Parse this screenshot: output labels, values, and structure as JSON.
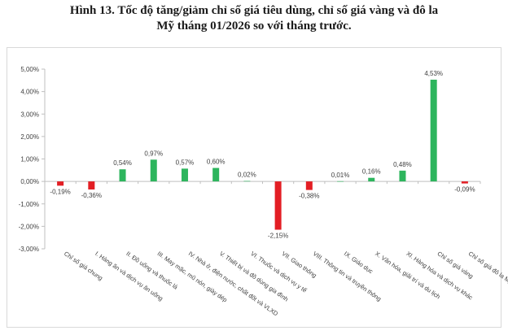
{
  "title": {
    "line1": "Hình 13. Tốc độ tăng/giảm chỉ số giá tiêu dùng, chỉ số giá vàng và đô la",
    "line2": "Mỹ tháng 01/2026 so với tháng trước."
  },
  "colors": {
    "positive": "#2db55d",
    "negative": "#e31e24",
    "axis": "#bfbfbf",
    "text": "#404040"
  },
  "chart_data": {
    "type": "bar",
    "title": "",
    "xlabel": "",
    "ylabel": "",
    "ylim": [
      -3,
      5
    ],
    "yticks": [
      -3,
      -2,
      -1,
      0,
      1,
      2,
      3,
      4,
      5
    ],
    "ytick_labels": [
      "-3,00%",
      "-2,00%",
      "-1,00%",
      "0,00%",
      "1,00%",
      "2,00%",
      "3,00%",
      "4,00%",
      "5,00%"
    ],
    "grid": false,
    "legend": "none",
    "categories": [
      "Chỉ số giá chung",
      "I. Hàng ăn và dịch vụ ăn uống",
      "II. Đồ uống và thuốc lá",
      "III. May mặc, mũ nón, giày dép",
      "IV. Nhà ở, điện nước, chất đốt và VLXD",
      "V. Thiết bị và đồ dùng gia đình",
      "VI. Thuốc và dịch vụ y tế",
      "VII. Giao thông",
      "VIII. Thông tin và truyền thông",
      "IX. Giáo dục",
      "X. Văn hóa, giải trí và du lịch",
      "XI. Hàng hóa và dịch vụ khác",
      "Chỉ số giá vàng",
      "Chỉ số giá đô la Mỹ"
    ],
    "values": [
      -0.19,
      -0.36,
      0.54,
      0.97,
      0.57,
      0.6,
      0.02,
      -2.15,
      -0.38,
      0.01,
      0.16,
      0.48,
      4.53,
      -0.09
    ],
    "data_labels": [
      "-0,19%",
      "-0,36%",
      "0,54%",
      "0,97%",
      "0,57%",
      "0,60%",
      "0,02%",
      "-2,15%",
      "-0,38%",
      "0,01%",
      "0,16%",
      "0,48%",
      "4,53%",
      "-0,09%"
    ]
  }
}
